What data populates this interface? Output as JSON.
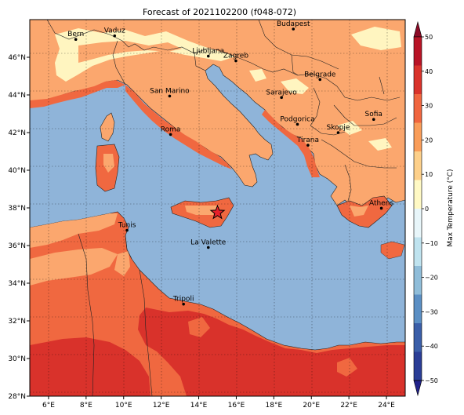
{
  "title": "Forecast of 2021102200 (f048-072)",
  "colorbar": {
    "label": "Max Temperature (°C)",
    "ticks": [
      "50",
      "40",
      "30",
      "20",
      "10",
      "0",
      "−10",
      "−20",
      "−30",
      "−40",
      "−50"
    ],
    "bands": [
      "#8c0a26",
      "#b81426",
      "#d9332b",
      "#f0663f",
      "#f99d59",
      "#fdd08a",
      "#fff9c4",
      "#e8f6fa",
      "#bfe3ef",
      "#8fbdd9",
      "#5b8fc4",
      "#3a5ea8",
      "#2a3d96",
      "#21228a"
    ]
  },
  "lon_ticks": [
    "6°E",
    "8°E",
    "10°E",
    "12°E",
    "14°E",
    "16°E",
    "18°E",
    "20°E",
    "22°E",
    "24°E"
  ],
  "lat_ticks": [
    "46°N",
    "44°N",
    "42°N",
    "40°N",
    "38°N",
    "36°N",
    "34°N",
    "32°N",
    "30°N",
    "28°N"
  ],
  "palette": {
    "sea": "#8fb4d9",
    "warm_land": "#fba76e",
    "hot_land": "#f06840",
    "very_hot": "#d9322b",
    "cool": "#fff5c0"
  },
  "cities": [
    {
      "name": "Bern",
      "lon": 7.45,
      "lat": 46.95
    },
    {
      "name": "Vaduz",
      "lon": 9.52,
      "lat": 47.14
    },
    {
      "name": "Budapest",
      "lon": 19.04,
      "lat": 47.5
    },
    {
      "name": "Ljubljana",
      "lon": 14.51,
      "lat": 46.06
    },
    {
      "name": "Zagreb",
      "lon": 15.98,
      "lat": 45.81
    },
    {
      "name": "Belgrade",
      "lon": 20.46,
      "lat": 44.82
    },
    {
      "name": "San Marino",
      "lon": 12.45,
      "lat": 43.94
    },
    {
      "name": "Sarajevo",
      "lon": 18.41,
      "lat": 43.86
    },
    {
      "name": "Roma",
      "lon": 12.5,
      "lat": 41.9
    },
    {
      "name": "Podgorica",
      "lon": 19.26,
      "lat": 42.44
    },
    {
      "name": "Skopje",
      "lon": 21.43,
      "lat": 42.0
    },
    {
      "name": "Sofia",
      "lon": 23.32,
      "lat": 42.7
    },
    {
      "name": "Tirana",
      "lon": 19.82,
      "lat": 41.33
    },
    {
      "name": "Athens",
      "lon": 23.73,
      "lat": 37.98
    },
    {
      "name": "Tunis",
      "lon": 10.18,
      "lat": 36.81
    },
    {
      "name": "La Valette",
      "lon": 14.51,
      "lat": 35.9
    },
    {
      "name": "Tripoli",
      "lon": 13.19,
      "lat": 32.89
    }
  ],
  "marker": {
    "lon": 15.0,
    "lat": 37.75,
    "type": "star"
  }
}
